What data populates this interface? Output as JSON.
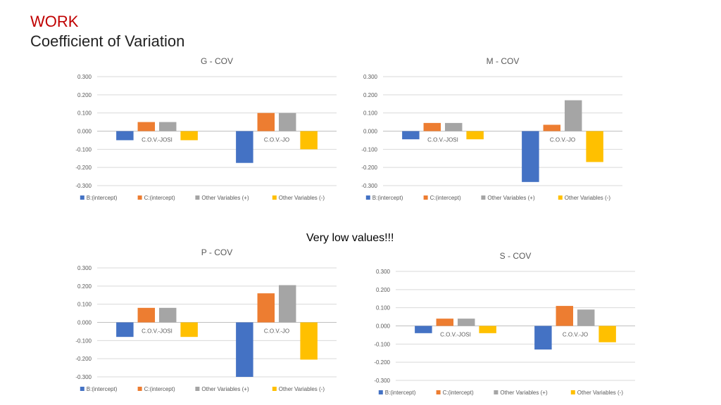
{
  "slide": {
    "title": "WORK",
    "subtitle": "Coefficient of Variation",
    "note": "Very low values!!!"
  },
  "chart_data": [
    {
      "type": "bar",
      "title": "G - COV",
      "categories": [
        "C.O.V.-JOSI",
        "C.O.V.-JO"
      ],
      "ylim": [
        -0.3,
        0.3
      ],
      "yticks": [
        "0.300",
        "0.200",
        "0.100",
        "0.000",
        "-0.100",
        "-0.200",
        "-0.300"
      ],
      "grid": true,
      "legend_position": "bottom",
      "series": [
        {
          "name": "B:(intercept)",
          "color": "#4472c4",
          "values": [
            -0.05,
            -0.175
          ]
        },
        {
          "name": "C:(intercept)",
          "color": "#ed7d31",
          "values": [
            0.05,
            0.1
          ]
        },
        {
          "name": "Other Variables (+)",
          "color": "#a5a5a5",
          "values": [
            0.05,
            0.1
          ]
        },
        {
          "name": "Other Variables (-)",
          "color": "#ffc000",
          "values": [
            -0.05,
            -0.1
          ]
        }
      ]
    },
    {
      "type": "bar",
      "title": "M - COV",
      "categories": [
        "C.O.V.-JOSI",
        "C.O.V.-JO"
      ],
      "ylim": [
        -0.3,
        0.3
      ],
      "yticks": [
        "0.300",
        "0.200",
        "0.100",
        "0.000",
        "-0.100",
        "-0.200",
        "-0.300"
      ],
      "grid": true,
      "legend_position": "bottom",
      "series": [
        {
          "name": "B:(intercept)",
          "color": "#4472c4",
          "values": [
            -0.045,
            -0.28
          ]
        },
        {
          "name": "C:(intercept)",
          "color": "#ed7d31",
          "values": [
            0.045,
            0.035
          ]
        },
        {
          "name": "Other Variables (+)",
          "color": "#a5a5a5",
          "values": [
            0.045,
            0.17
          ]
        },
        {
          "name": "Other Variables (-)",
          "color": "#ffc000",
          "values": [
            -0.045,
            -0.17
          ]
        }
      ]
    },
    {
      "type": "bar",
      "title": "P - COV",
      "categories": [
        "C.O.V.-JOSI",
        "C.O.V.-JO"
      ],
      "ylim": [
        -0.3,
        0.3
      ],
      "yticks": [
        "0.300",
        "0.200",
        "0.100",
        "0.000",
        "-0.100",
        "-0.200",
        "-0.300"
      ],
      "grid": true,
      "legend_position": "bottom",
      "series": [
        {
          "name": "B:(intercept)",
          "color": "#4472c4",
          "values": [
            -0.08,
            -0.3
          ]
        },
        {
          "name": "C:(intercept)",
          "color": "#ed7d31",
          "values": [
            0.08,
            0.16
          ]
        },
        {
          "name": "Other Variables (+)",
          "color": "#a5a5a5",
          "values": [
            0.08,
            0.205
          ]
        },
        {
          "name": "Other Variables (-)",
          "color": "#ffc000",
          "values": [
            -0.08,
            -0.205
          ]
        }
      ]
    },
    {
      "type": "bar",
      "title": "S - COV",
      "categories": [
        "C.O.V.-JOSI",
        "C.O.V.-JO"
      ],
      "ylim": [
        -0.3,
        0.3
      ],
      "yticks": [
        "0.300",
        "0.200",
        "0.100",
        "0.000",
        "-0.100",
        "-0.200",
        "-0.300"
      ],
      "grid": true,
      "legend_position": "bottom",
      "series": [
        {
          "name": "B:(intercept)",
          "color": "#4472c4",
          "values": [
            -0.04,
            -0.13
          ]
        },
        {
          "name": "C:(intercept)",
          "color": "#ed7d31",
          "values": [
            0.04,
            0.11
          ]
        },
        {
          "name": "Other Variables (+)",
          "color": "#a5a5a5",
          "values": [
            0.04,
            0.09
          ]
        },
        {
          "name": "Other Variables (-)",
          "color": "#ffc000",
          "values": [
            -0.04,
            -0.09
          ]
        }
      ]
    }
  ]
}
